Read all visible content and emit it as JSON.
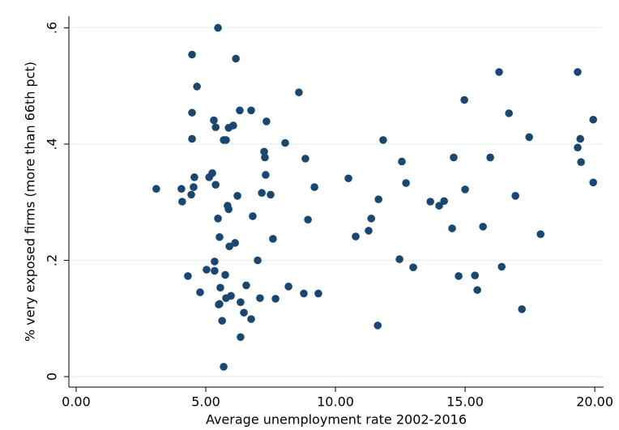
{
  "chart_data": {
    "type": "scatter",
    "x_label": "Average unemployment rate 2002-2016",
    "y_label": "% very exposed firms (more than 66th pct)",
    "color": "#1a476f",
    "grid": true,
    "xlim": [
      -0.28,
      20.34
    ],
    "ylim": [
      -0.018,
      0.62
    ],
    "xticks": [
      {
        "value": 0,
        "label": "0.00"
      },
      {
        "value": 5,
        "label": "5.00"
      },
      {
        "value": 10,
        "label": "10.00"
      },
      {
        "value": 15,
        "label": "15.00"
      },
      {
        "value": 20,
        "label": "20.00"
      }
    ],
    "yticks": [
      0,
      {
        "value": 0.2,
        "label": ".2"
      },
      {
        "value": 0.4,
        "label": ".4"
      },
      {
        "value": 0.6,
        "label": ".6"
      }
    ],
    "x": [
      3.09,
      4.06,
      4.09,
      4.44,
      4.53,
      4.56,
      4.31,
      4.47,
      4.66,
      4.47,
      4.47,
      4.78,
      5.03,
      5.13,
      5.25,
      5.31,
      5.38,
      5.34,
      5.34,
      5.38,
      5.47,
      5.47,
      5.53,
      5.56,
      5.53,
      5.5,
      5.63,
      5.69,
      5.69,
      5.78,
      5.75,
      5.78,
      5.88,
      5.84,
      5.91,
      5.97,
      5.88,
      6.06,
      6.13,
      6.16,
      6.22,
      6.31,
      6.34,
      6.34,
      6.47,
      6.56,
      6.75,
      6.75,
      6.81,
      7.0,
      7.09,
      7.16,
      7.25,
      7.28,
      7.31,
      7.34,
      7.5,
      7.59,
      7.69,
      8.06,
      8.19,
      8.59,
      8.78,
      8.84,
      8.94,
      9.19,
      9.34,
      10.5,
      10.78,
      11.28,
      11.38,
      11.63,
      11.66,
      11.84,
      12.47,
      12.56,
      12.72,
      13.0,
      13.66,
      14.0,
      14.19,
      14.5,
      14.56,
      14.75,
      14.97,
      15.0,
      15.38,
      15.47,
      15.69,
      15.97,
      16.31,
      16.41,
      16.69,
      16.94,
      17.19,
      17.47,
      17.91,
      19.34,
      19.34,
      19.44,
      19.47,
      19.94,
      19.94
    ],
    "values": [
      0.323,
      0.323,
      0.301,
      0.313,
      0.326,
      0.343,
      0.173,
      0.554,
      0.499,
      0.454,
      0.409,
      0.145,
      0.184,
      0.343,
      0.35,
      0.441,
      0.429,
      0.198,
      0.182,
      0.33,
      0.6,
      0.272,
      0.24,
      0.153,
      0.125,
      0.124,
      0.096,
      0.017,
      0.407,
      0.407,
      0.175,
      0.135,
      0.288,
      0.294,
      0.224,
      0.139,
      0.428,
      0.432,
      0.23,
      0.547,
      0.311,
      0.458,
      0.128,
      0.068,
      0.11,
      0.157,
      0.458,
      0.099,
      0.276,
      0.2,
      0.135,
      0.316,
      0.387,
      0.377,
      0.347,
      0.439,
      0.313,
      0.237,
      0.134,
      0.402,
      0.155,
      0.489,
      0.143,
      0.375,
      0.27,
      0.326,
      0.143,
      0.341,
      0.241,
      0.251,
      0.272,
      0.088,
      0.305,
      0.407,
      0.202,
      0.37,
      0.333,
      0.188,
      0.301,
      0.294,
      0.302,
      0.255,
      0.377,
      0.173,
      0.476,
      0.322,
      0.174,
      0.149,
      0.258,
      0.377,
      0.524,
      0.189,
      0.453,
      0.311,
      0.116,
      0.412,
      0.245,
      0.524,
      0.394,
      0.409,
      0.369,
      0.442,
      0.334
    ]
  }
}
